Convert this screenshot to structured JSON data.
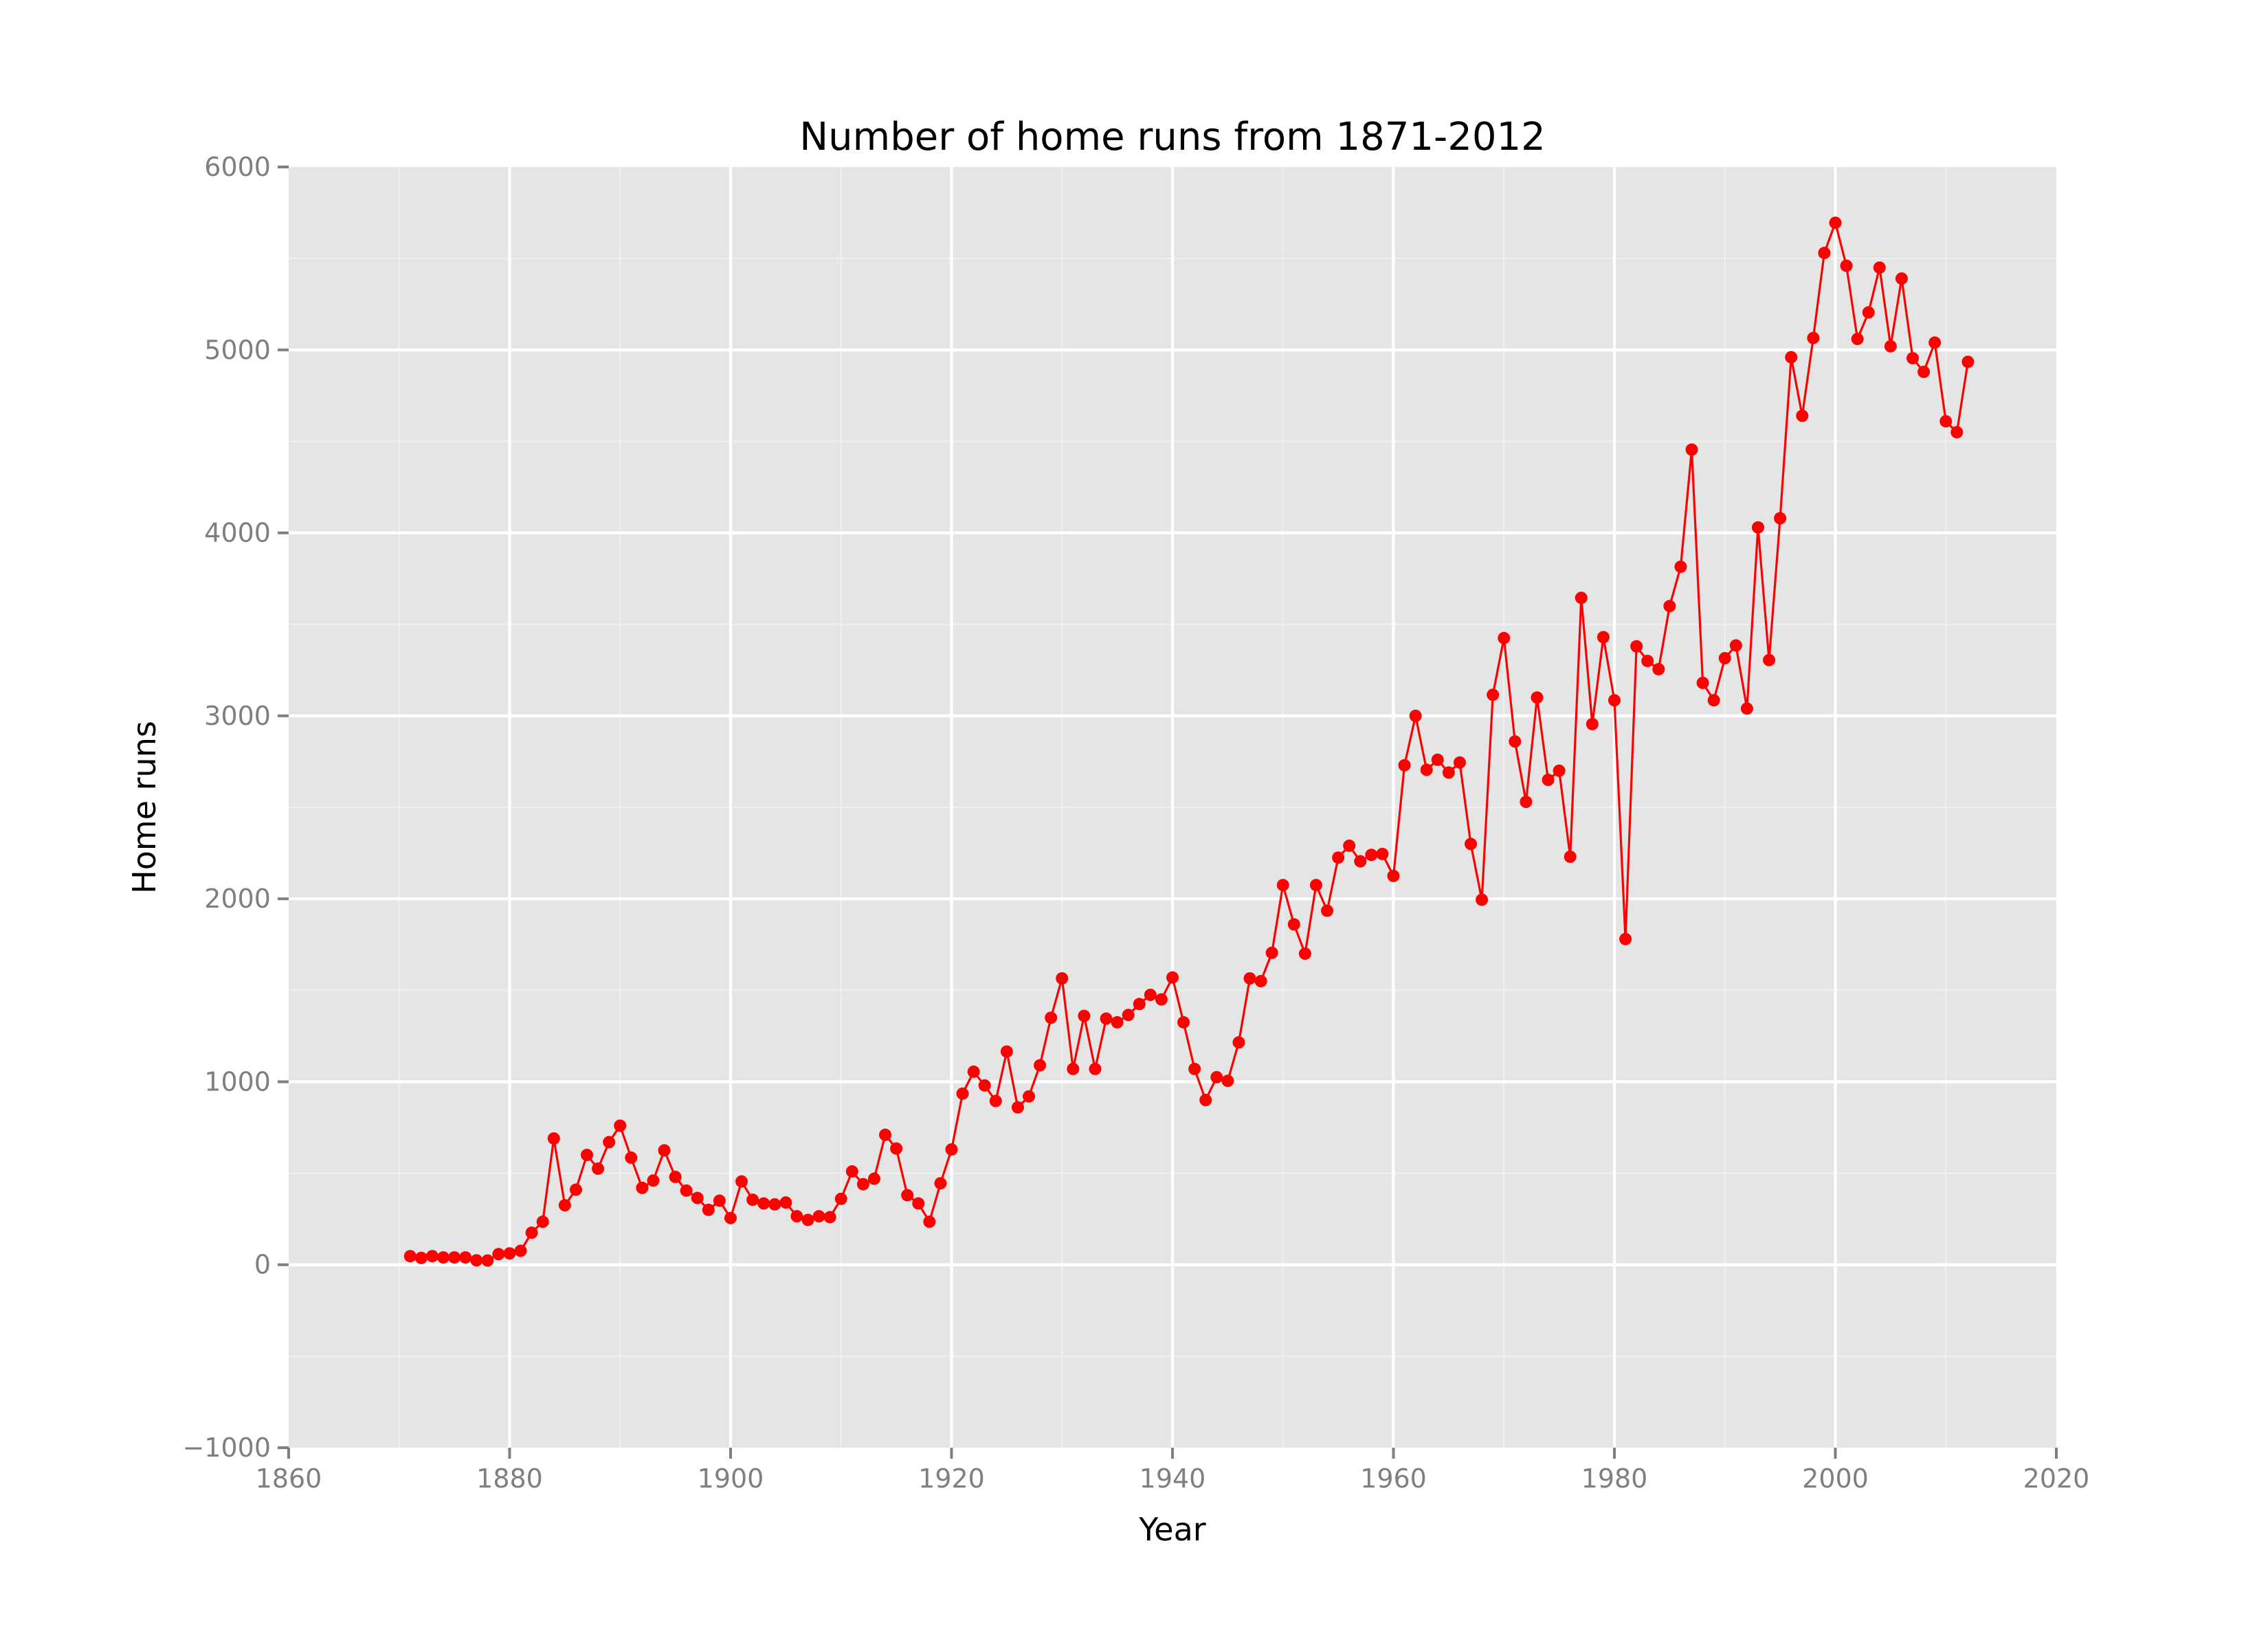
{
  "chart_data": {
    "type": "line",
    "title": "Number of home runs from 1871-2012",
    "xlabel": "Year",
    "ylabel": "Home runs",
    "xlim": [
      1860,
      2020
    ],
    "ylim": [
      -1000,
      6000
    ],
    "x_ticks": [
      1860,
      1880,
      1900,
      1920,
      1940,
      1960,
      1980,
      2000,
      2020
    ],
    "y_ticks": [
      -1000,
      0,
      1000,
      2000,
      3000,
      4000,
      5000,
      6000
    ],
    "x_tick_labels": [
      "1860",
      "1880",
      "1900",
      "1920",
      "1940",
      "1960",
      "1980",
      "2000",
      "2020"
    ],
    "y_tick_labels": [
      "−1000",
      "0",
      "1000",
      "2000",
      "3000",
      "4000",
      "5000",
      "6000"
    ],
    "grid": true,
    "background_color": "#e5e5e5",
    "series": [
      {
        "color": "#ff0000",
        "x": [
          1871,
          1872,
          1873,
          1874,
          1875,
          1876,
          1877,
          1878,
          1879,
          1880,
          1881,
          1882,
          1883,
          1884,
          1885,
          1886,
          1887,
          1888,
          1889,
          1890,
          1891,
          1892,
          1893,
          1894,
          1895,
          1896,
          1897,
          1898,
          1899,
          1900,
          1901,
          1902,
          1903,
          1904,
          1905,
          1906,
          1907,
          1908,
          1909,
          1910,
          1911,
          1912,
          1913,
          1914,
          1915,
          1916,
          1917,
          1918,
          1919,
          1920,
          1921,
          1922,
          1923,
          1924,
          1925,
          1926,
          1927,
          1928,
          1929,
          1930,
          1931,
          1932,
          1933,
          1934,
          1935,
          1936,
          1937,
          1938,
          1939,
          1940,
          1941,
          1942,
          1943,
          1944,
          1945,
          1946,
          1947,
          1948,
          1949,
          1950,
          1951,
          1952,
          1953,
          1954,
          1955,
          1956,
          1957,
          1958,
          1959,
          1960,
          1961,
          1962,
          1963,
          1964,
          1965,
          1966,
          1967,
          1968,
          1969,
          1970,
          1971,
          1972,
          1973,
          1974,
          1975,
          1976,
          1977,
          1978,
          1979,
          1980,
          1981,
          1982,
          1983,
          1984,
          1985,
          1986,
          1987,
          1988,
          1989,
          1990,
          1991,
          1992,
          1993,
          1994,
          1995,
          1996,
          1997,
          1998,
          1999,
          2000,
          2001,
          2002,
          2003,
          2004,
          2005,
          2006,
          2007,
          2008,
          2009,
          2010,
          2011,
          2012
        ],
        "y": [
          47,
          37,
          47,
          40,
          40,
          40,
          24,
          23,
          58,
          62,
          76,
          175,
          235,
          690,
          325,
          410,
          600,
          525,
          670,
          760,
          585,
          420,
          460,
          625,
          480,
          405,
          365,
          300,
          350,
          255,
          455,
          355,
          335,
          330,
          340,
          265,
          245,
          265,
          260,
          360,
          510,
          440,
          470,
          710,
          635,
          380,
          335,
          235,
          445,
          630,
          935,
          1055,
          980,
          895,
          1165,
          860,
          920,
          1090,
          1350,
          1565,
          1070,
          1360,
          1070,
          1345,
          1325,
          1365,
          1425,
          1475,
          1450,
          1570,
          1325,
          1070,
          900,
          1025,
          1005,
          1215,
          1565,
          1550,
          1705,
          2075,
          1860,
          1700,
          2075,
          1935,
          2225,
          2290,
          2205,
          2240,
          2245,
          2125,
          2730,
          3000,
          2705,
          2760,
          2690,
          2745,
          2300,
          1995,
          3115,
          3425,
          2860,
          2530,
          3100,
          2650,
          2700,
          2230,
          3645,
          2955,
          3430,
          3085,
          1780,
          3380,
          3300,
          3255,
          3600,
          3815,
          4455,
          3180,
          3085,
          3315,
          3385,
          3040,
          4030,
          3305,
          4080,
          4960,
          4640,
          5065,
          5530,
          5695,
          5460,
          5060,
          5205,
          5450,
          5020,
          5390,
          4955,
          4880,
          5040,
          4610,
          4550,
          4935
        ]
      }
    ]
  }
}
